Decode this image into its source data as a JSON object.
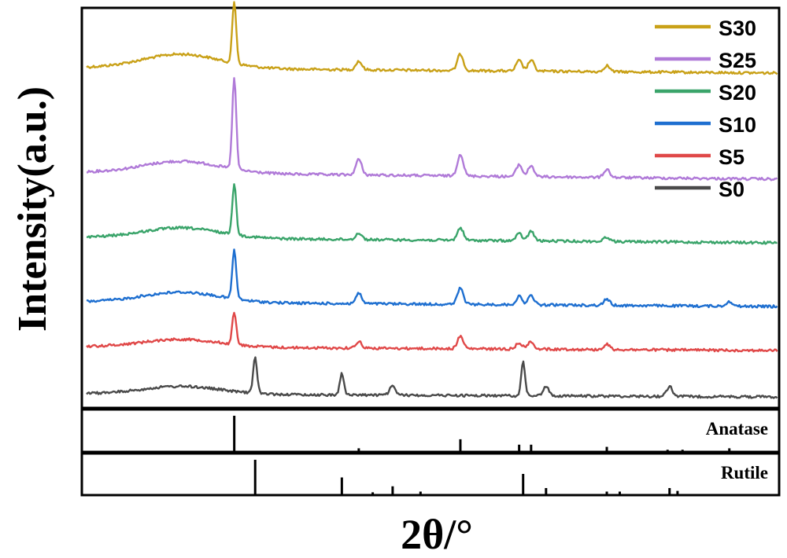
{
  "chart_data": [
    {
      "type": "line",
      "panel": "xrd-patterns",
      "xlabel": "2θ/°",
      "ylabel": "Intensity(a.u.)",
      "x_ticks_shown": false,
      "y_ticks_shown": false,
      "grid": false,
      "legend_position": "top-right",
      "series": [
        {
          "name": "S30",
          "color": "#c9a118",
          "peaks": [
            {
              "x": 25.3,
              "rel": 1.0
            },
            {
              "x": 37.8,
              "rel": 0.14
            },
            {
              "x": 48.0,
              "rel": 0.27
            },
            {
              "x": 53.9,
              "rel": 0.17
            },
            {
              "x": 55.1,
              "rel": 0.18
            },
            {
              "x": 62.7,
              "rel": 0.1
            }
          ]
        },
        {
          "name": "S25",
          "color": "#b07ad8",
          "peaks": [
            {
              "x": 25.3,
              "rel": 1.0
            },
            {
              "x": 37.8,
              "rel": 0.17
            },
            {
              "x": 48.0,
              "rel": 0.24
            },
            {
              "x": 53.9,
              "rel": 0.13
            },
            {
              "x": 55.1,
              "rel": 0.12
            },
            {
              "x": 62.7,
              "rel": 0.09
            }
          ]
        },
        {
          "name": "S20",
          "color": "#3aa46a",
          "peaks": [
            {
              "x": 25.3,
              "rel": 1.0
            },
            {
              "x": 37.8,
              "rel": 0.13
            },
            {
              "x": 48.0,
              "rel": 0.25
            },
            {
              "x": 53.9,
              "rel": 0.14
            },
            {
              "x": 55.1,
              "rel": 0.19
            },
            {
              "x": 62.7,
              "rel": 0.09
            }
          ]
        },
        {
          "name": "S10",
          "color": "#1e6fd0",
          "peaks": [
            {
              "x": 25.3,
              "rel": 1.0
            },
            {
              "x": 37.8,
              "rel": 0.21
            },
            {
              "x": 48.0,
              "rel": 0.33
            },
            {
              "x": 53.9,
              "rel": 0.17
            },
            {
              "x": 55.1,
              "rel": 0.19
            },
            {
              "x": 62.7,
              "rel": 0.13
            },
            {
              "x": 75.0,
              "rel": 0.1
            }
          ]
        },
        {
          "name": "S5",
          "color": "#e04848",
          "peaks": [
            {
              "x": 25.3,
              "rel": 1.0
            },
            {
              "x": 37.8,
              "rel": 0.21
            },
            {
              "x": 48.0,
              "rel": 0.38
            },
            {
              "x": 53.9,
              "rel": 0.2
            },
            {
              "x": 55.1,
              "rel": 0.24
            },
            {
              "x": 62.7,
              "rel": 0.16
            }
          ]
        },
        {
          "name": "S0",
          "color": "#4a4a4a",
          "peaks": [
            {
              "x": 27.4,
              "rel": 1.0
            },
            {
              "x": 36.1,
              "rel": 0.62
            },
            {
              "x": 41.2,
              "rel": 0.25
            },
            {
              "x": 54.3,
              "rel": 0.94
            },
            {
              "x": 56.6,
              "rel": 0.25
            },
            {
              "x": 69.0,
              "rel": 0.28
            }
          ]
        }
      ]
    },
    {
      "type": "bar",
      "panel": "reference-anatase",
      "title": "Anatase",
      "x": [
        25.3,
        37.8,
        48.0,
        53.9,
        55.1,
        62.7,
        68.8,
        70.3,
        75.0
      ],
      "values": [
        100,
        10,
        35,
        20,
        20,
        14,
        6,
        6,
        10
      ]
    },
    {
      "type": "bar",
      "panel": "reference-rutile",
      "title": "Rutile",
      "x": [
        27.4,
        36.1,
        39.2,
        41.2,
        44.0,
        54.3,
        56.6,
        62.7,
        64.0,
        69.0,
        69.8
      ],
      "values": [
        100,
        50,
        8,
        25,
        10,
        60,
        20,
        10,
        10,
        20,
        12
      ]
    }
  ]
}
